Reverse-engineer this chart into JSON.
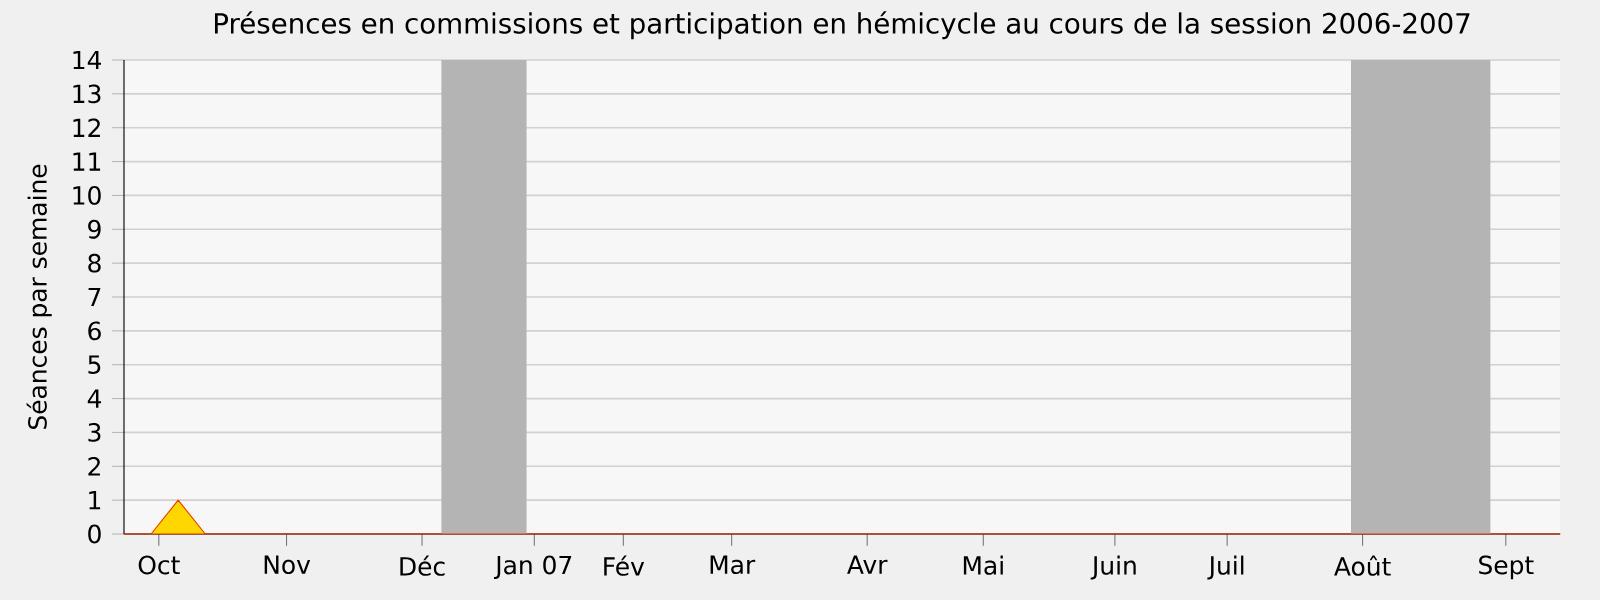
{
  "chart_data": {
    "type": "area",
    "title": "Présences en commissions et participation en hémicycle au cours de la session 2006-2007",
    "ylabel": "Séances par semaine",
    "x": [
      "2006-09-25",
      "2006-10-02",
      "2006-10-09",
      "2006-10-16",
      "2006-10-23",
      "2006-10-30",
      "2006-11-06",
      "2006-11-13",
      "2006-11-20",
      "2006-11-27",
      "2006-12-04",
      "2006-12-11",
      "2006-12-18",
      "2006-12-25",
      "2007-01-01",
      "2007-01-08",
      "2007-01-15",
      "2007-01-22",
      "2007-01-29",
      "2007-02-05",
      "2007-02-12",
      "2007-02-19",
      "2007-02-26",
      "2007-03-05",
      "2007-03-12",
      "2007-03-19",
      "2007-03-26",
      "2007-04-02",
      "2007-04-09",
      "2007-04-16",
      "2007-04-23",
      "2007-04-30",
      "2007-05-07",
      "2007-05-14",
      "2007-05-21",
      "2007-05-28",
      "2007-06-04",
      "2007-06-11",
      "2007-06-18",
      "2007-06-25",
      "2007-07-02",
      "2007-07-09",
      "2007-07-16",
      "2007-07-23",
      "2007-07-30",
      "2007-08-06",
      "2007-08-13",
      "2007-08-20",
      "2007-08-27",
      "2007-09-03",
      "2007-09-10",
      "2007-09-17",
      "2007-09-24",
      "2007-10-01"
    ],
    "series": [
      {
        "color": "#ffd700",
        "values": [
          0,
          0,
          1,
          0,
          0,
          0,
          0,
          0,
          0,
          0,
          0,
          0,
          0,
          0,
          0,
          0,
          0,
          0,
          0,
          0,
          0,
          0,
          0,
          0,
          0,
          0,
          0,
          0,
          0,
          0,
          0,
          0,
          0,
          0,
          0,
          0,
          0,
          0,
          0,
          0,
          0,
          0,
          0,
          0,
          0,
          0,
          0,
          0,
          0,
          0,
          0,
          0,
          0,
          0
        ]
      }
    ],
    "xlim": [
      "2006-09-25",
      "2007-10-01"
    ],
    "xticks": [
      {
        "value": "2006-10-04",
        "label": "Oct"
      },
      {
        "value": "2006-11-06",
        "label": "Nov"
      },
      {
        "value": "2006-12-11",
        "label": "Déc"
      },
      {
        "value": "2007-01-09",
        "label": "Jan 07"
      },
      {
        "value": "2007-02-01",
        "label": "Fév"
      },
      {
        "value": "2007-03-01",
        "label": "Mar"
      },
      {
        "value": "2007-04-05",
        "label": "Avr"
      },
      {
        "value": "2007-05-05",
        "label": "Mai"
      },
      {
        "value": "2007-06-08",
        "label": "Juin"
      },
      {
        "value": "2007-07-07",
        "label": "Juil"
      },
      {
        "value": "2007-08-11",
        "label": "Août"
      },
      {
        "value": "2007-09-17",
        "label": "Sept"
      }
    ],
    "ylim": [
      0,
      14
    ],
    "yticks": [
      0,
      1,
      2,
      3,
      4,
      5,
      6,
      7,
      8,
      9,
      10,
      11,
      12,
      13,
      14
    ],
    "bands": [
      {
        "axis": "x",
        "from": "2006-12-16",
        "to": "2007-01-07",
        "color": "#b4b4b4"
      },
      {
        "axis": "x",
        "from": "2007-08-08",
        "to": "2007-09-13",
        "color": "#b4b4b4"
      }
    ],
    "grid": "y",
    "line_style": "solid"
  }
}
